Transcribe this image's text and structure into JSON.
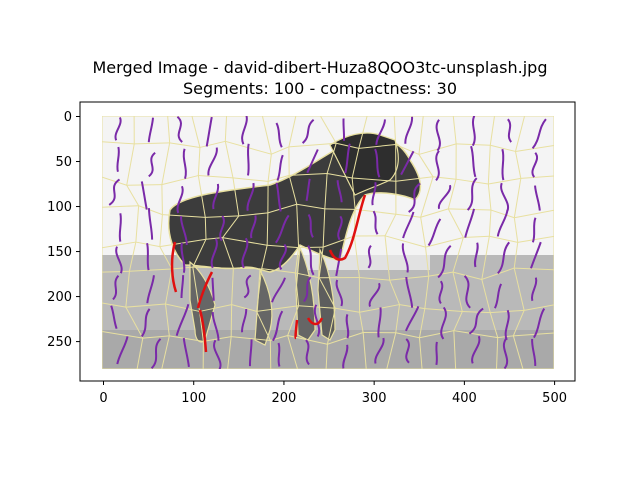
{
  "chart_data": {
    "type": "image",
    "title_lines": [
      "Merged Image - david-dibert-Huza8QOO3tc-unsplash.jpg",
      "Segments: 100 - compactness: 30"
    ],
    "xlim": [
      -0.5,
      500.5
    ],
    "ylim": [
      280.5,
      -0.5
    ],
    "xticks": [
      0,
      100,
      200,
      300,
      400,
      500
    ],
    "yticks": [
      0,
      50,
      100,
      150,
      200,
      250
    ],
    "grid": false,
    "colors": {
      "background_light": "#f2f2f2",
      "ground_gray": "#b8b8b8",
      "horse_dark": "#3a3a3a",
      "legs_gray": "#5a5a5a",
      "segment_boundary": "#e8e0a0",
      "flow_lines": "#7a2aa8",
      "highlight": "#e01010"
    }
  }
}
